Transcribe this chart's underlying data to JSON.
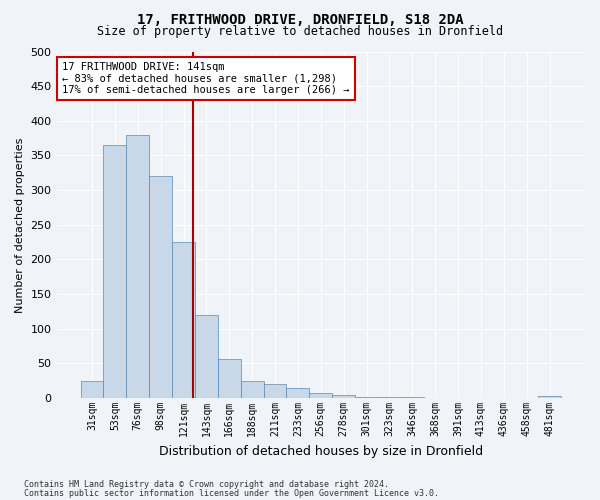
{
  "title": "17, FRITHWOOD DRIVE, DRONFIELD, S18 2DA",
  "subtitle": "Size of property relative to detached houses in Dronfield",
  "xlabel": "Distribution of detached houses by size in Dronfield",
  "ylabel": "Number of detached properties",
  "bin_labels": [
    "31sqm",
    "53sqm",
    "76sqm",
    "98sqm",
    "121sqm",
    "143sqm",
    "166sqm",
    "188sqm",
    "211sqm",
    "233sqm",
    "256sqm",
    "278sqm",
    "301sqm",
    "323sqm",
    "346sqm",
    "368sqm",
    "391sqm",
    "413sqm",
    "436sqm",
    "458sqm",
    "481sqm"
  ],
  "bar_values": [
    25,
    365,
    380,
    320,
    225,
    120,
    57,
    25,
    20,
    15,
    7,
    5,
    2,
    1,
    1,
    0,
    0,
    0,
    0,
    0,
    3
  ],
  "bar_color": "#c8d8e8",
  "bar_edge_color": "#5a8ab0",
  "annotation_line1": "17 FRITHWOOD DRIVE: 141sqm",
  "annotation_line2": "← 83% of detached houses are smaller (1,298)",
  "annotation_line3": "17% of semi-detached houses are larger (266) →",
  "annotation_box_color": "#ffffff",
  "annotation_box_edge": "#cc0000",
  "vline_color": "#aa0000",
  "ylim": [
    0,
    500
  ],
  "yticks": [
    0,
    50,
    100,
    150,
    200,
    250,
    300,
    350,
    400,
    450,
    500
  ],
  "footer1": "Contains HM Land Registry data © Crown copyright and database right 2024.",
  "footer2": "Contains public sector information licensed under the Open Government Licence v3.0.",
  "bg_color": "#f0f4f8",
  "plot_bg_color": "#f0f4f8"
}
